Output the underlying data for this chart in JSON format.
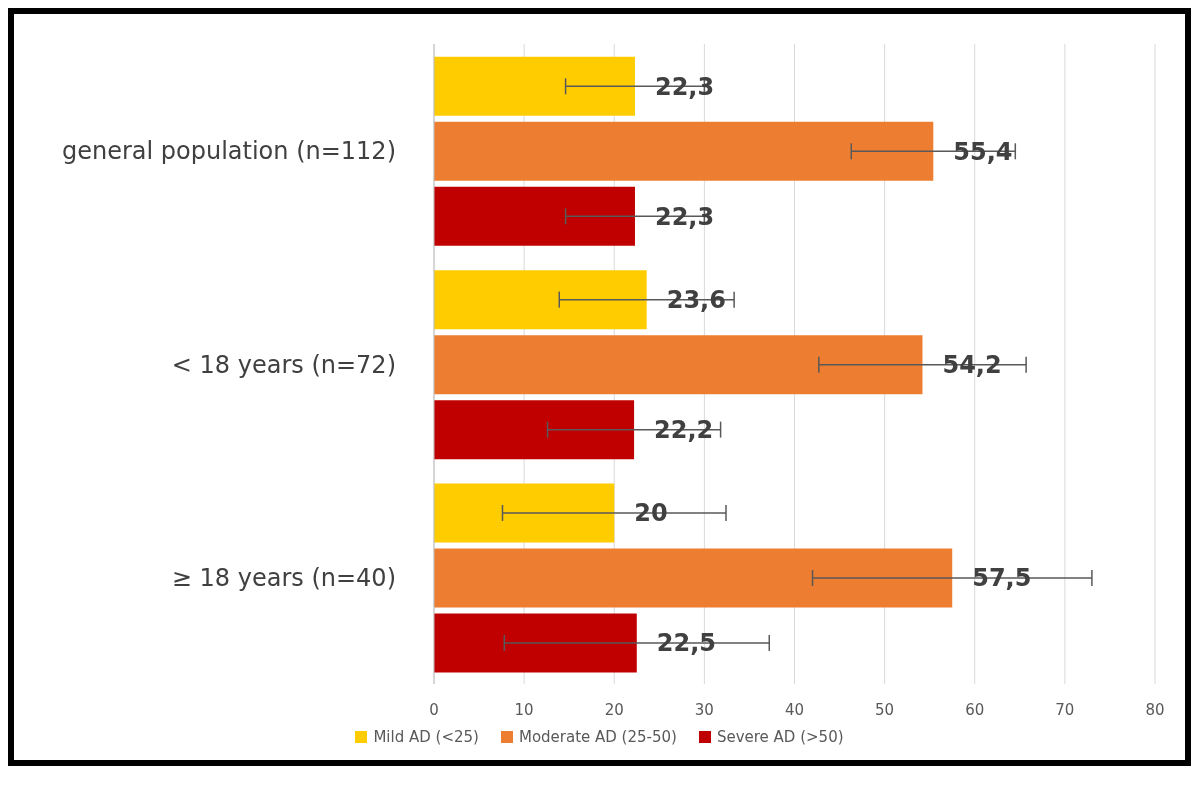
{
  "chart_data": {
    "type": "bar",
    "orientation": "horizontal",
    "categories": [
      "general population (n=112)",
      "< 18 years (n=72)",
      "≥ 18 years (n=40)"
    ],
    "series": [
      {
        "name": "Mild AD (<25)",
        "color": "#ffcc00",
        "values": [
          22.3,
          23.6,
          20
        ],
        "errors": [
          7.7,
          9.7,
          12.4
        ],
        "value_labels": [
          "22,3",
          "23,6",
          "20"
        ]
      },
      {
        "name": "Moderate AD (25-50)",
        "color": "#ed7d31",
        "values": [
          55.4,
          54.2,
          57.5
        ],
        "errors": [
          9.1,
          11.5,
          15.5
        ],
        "value_labels": [
          "55,4",
          "54,2",
          "57,5"
        ]
      },
      {
        "name": "Severe AD (>50)",
        "color": "#c00000",
        "values": [
          22.3,
          22.2,
          22.5
        ],
        "errors": [
          7.7,
          9.6,
          14.7
        ],
        "value_labels": [
          "22,3",
          "22,2",
          "22,5"
        ]
      }
    ],
    "xlim": [
      0,
      80
    ],
    "xticks": [
      0,
      10,
      20,
      30,
      40,
      50,
      60,
      70,
      80
    ],
    "grid": "x",
    "legend": "bottom"
  }
}
